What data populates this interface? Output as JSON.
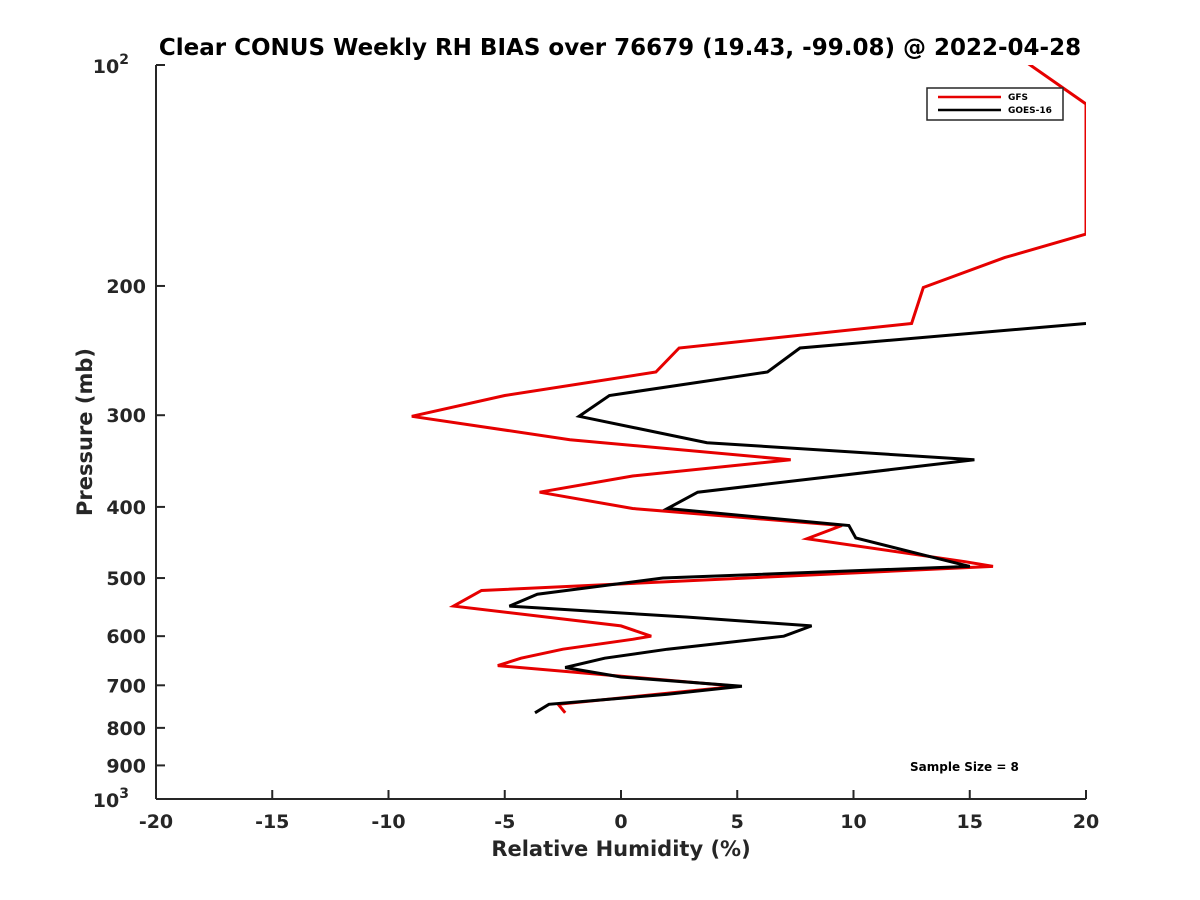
{
  "chart_data": {
    "type": "line",
    "title": "Clear CONUS Weekly RH BIAS over 76679 (19.43, -99.08) @ 2022-04-28",
    "xlabel": "Relative Humidity (%)",
    "ylabel": "Pressure (mb)",
    "xlim": [
      -20,
      20
    ],
    "ylim": [
      100,
      1000
    ],
    "y_scale": "log",
    "y_reversed": true,
    "grid": false,
    "legend_position": "top-right",
    "x_ticks": [
      "-20",
      "-15",
      "-10",
      "-5",
      "0",
      "5",
      "10",
      "15",
      "20"
    ],
    "y_ticks": [
      {
        "value": 100,
        "base": "10",
        "exp": "2"
      },
      {
        "value": 200,
        "label": "200"
      },
      {
        "value": 300,
        "label": "300"
      },
      {
        "value": 400,
        "label": "400"
      },
      {
        "value": 500,
        "label": "500"
      },
      {
        "value": 600,
        "label": "600"
      },
      {
        "value": 700,
        "label": "700"
      },
      {
        "value": 800,
        "label": "800"
      },
      {
        "value": 900,
        "label": "900"
      },
      {
        "value": 1000,
        "base": "10",
        "exp": "3"
      }
    ],
    "series": [
      {
        "name": "GFS",
        "color": "#e60000",
        "points": [
          [
            17,
            97
          ],
          [
            20,
            113
          ],
          [
            20,
            170
          ],
          [
            16.5,
            183
          ],
          [
            13,
            201
          ],
          [
            12.5,
            225
          ],
          [
            2.5,
            243
          ],
          [
            1.5,
            262
          ],
          [
            -5,
            282
          ],
          [
            -9,
            301
          ],
          [
            -2.2,
            324
          ],
          [
            7.3,
            345
          ],
          [
            0.5,
            363
          ],
          [
            -3.5,
            382
          ],
          [
            0.5,
            402
          ],
          [
            9.5,
            424
          ],
          [
            8,
            442
          ],
          [
            14.8,
            475
          ],
          [
            16,
            482
          ],
          [
            -6,
            520
          ],
          [
            -7.2,
            546
          ],
          [
            0,
            581
          ],
          [
            1.3,
            600
          ],
          [
            0.5,
            606
          ],
          [
            -2.5,
            625
          ],
          [
            -4.3,
            643
          ],
          [
            -5.3,
            658
          ],
          [
            5,
            702
          ],
          [
            -2.7,
            743
          ],
          [
            -2.4,
            763
          ]
        ]
      },
      {
        "name": "GOES-16",
        "color": "#000000",
        "points": [
          [
            20,
            225
          ],
          [
            7.7,
            243
          ],
          [
            6.3,
            262
          ],
          [
            -0.5,
            282
          ],
          [
            -1.8,
            301
          ],
          [
            3.7,
            327
          ],
          [
            15.2,
            345
          ],
          [
            3.3,
            382
          ],
          [
            2,
            402
          ],
          [
            9.8,
            424
          ],
          [
            10.1,
            441
          ],
          [
            13,
            465
          ],
          [
            15,
            482
          ],
          [
            1.8,
            500
          ],
          [
            -3.6,
            526
          ],
          [
            -4.8,
            546
          ],
          [
            2.8,
            565
          ],
          [
            8.2,
            581
          ],
          [
            7,
            600
          ],
          [
            2,
            625
          ],
          [
            -0.7,
            643
          ],
          [
            -2.4,
            662
          ],
          [
            0,
            682
          ],
          [
            5.2,
            702
          ],
          [
            2,
            720
          ],
          [
            -3.1,
            743
          ],
          [
            -3.7,
            763
          ]
        ]
      }
    ],
    "annotations": [
      "Sample Size = 8"
    ]
  }
}
